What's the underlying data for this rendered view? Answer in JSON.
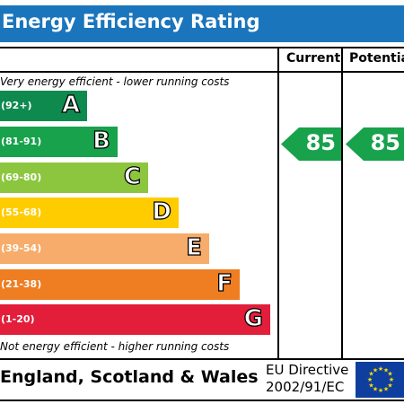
{
  "title": "Energy Efficiency Rating",
  "columns": {
    "current": "Current",
    "potential": "Potential"
  },
  "top_note": "Very energy efficient - lower running costs",
  "bottom_note": "Not energy efficient - higher running costs",
  "bands": [
    {
      "range": "(92+)",
      "letter": "A",
      "color": "#0e8a4f"
    },
    {
      "range": "(81-91)",
      "letter": "B",
      "color": "#17a24b"
    },
    {
      "range": "(69-80)",
      "letter": "C",
      "color": "#8cc63f"
    },
    {
      "range": "(55-68)",
      "letter": "D",
      "color": "#ffcc00"
    },
    {
      "range": "(39-54)",
      "letter": "E",
      "color": "#f7ac6b"
    },
    {
      "range": "(21-38)",
      "letter": "F",
      "color": "#ef7d22"
    },
    {
      "range": "(1-20)",
      "letter": "G",
      "color": "#e31e3b"
    }
  ],
  "current_rating": {
    "value": "85",
    "band": "B",
    "color": "#17a24b"
  },
  "potential_rating": {
    "value": "85",
    "band": "B",
    "color": "#17a24b"
  },
  "footer": {
    "country": "England, Scotland & Wales",
    "directive_line1": "EU Directive",
    "directive_line2": "2002/91/EC"
  },
  "flag": {
    "icon": "eu-flag-icon",
    "background": "#0f3f9e",
    "star_color": "#ffdd00"
  }
}
